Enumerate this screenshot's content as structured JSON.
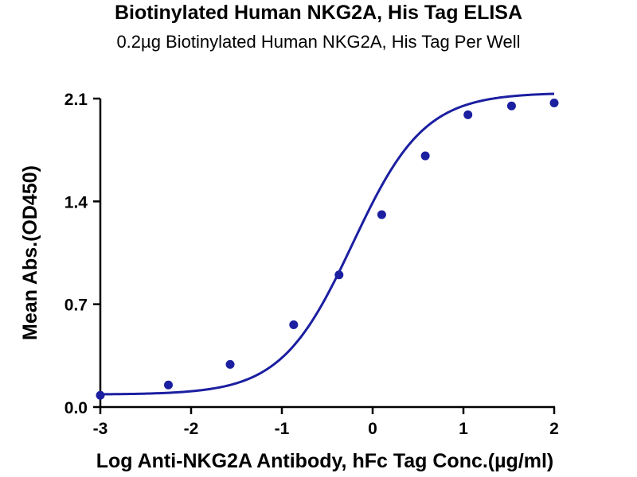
{
  "chart_data": {
    "type": "scatter",
    "title": "Biotinylated Human NKG2A, His Tag ELISA",
    "subtitle": "0.2µg Biotinylated Human NKG2A, His Tag Per Well",
    "xlabel": "Log Anti-NKG2A Antibody, hFc Tag Conc.(µg/ml)",
    "ylabel": "Mean Abs.(OD450)",
    "xlim": [
      -3,
      2
    ],
    "ylim": [
      0,
      2.1
    ],
    "xticks": [
      "-3",
      "-2",
      "-1",
      "0",
      "1",
      "2"
    ],
    "yticks": [
      "0.0",
      "0.7",
      "1.4",
      "2.1"
    ],
    "grid": false,
    "color": "#1b1fa0",
    "series": [
      {
        "points": [
          {
            "x": -3.0,
            "y": 0.08
          },
          {
            "x": -2.25,
            "y": 0.15
          },
          {
            "x": -1.57,
            "y": 0.29
          },
          {
            "x": -0.87,
            "y": 0.56
          },
          {
            "x": -0.37,
            "y": 0.9
          },
          {
            "x": 0.1,
            "y": 1.31
          },
          {
            "x": 0.58,
            "y": 1.71
          },
          {
            "x": 1.05,
            "y": 1.99
          },
          {
            "x": 1.53,
            "y": 2.05
          },
          {
            "x": 2.0,
            "y": 2.07
          }
        ]
      }
    ],
    "fit_curve": {
      "bottom": 0.085,
      "top": 2.14,
      "logEC50": -0.22,
      "hill": 1.1
    }
  }
}
